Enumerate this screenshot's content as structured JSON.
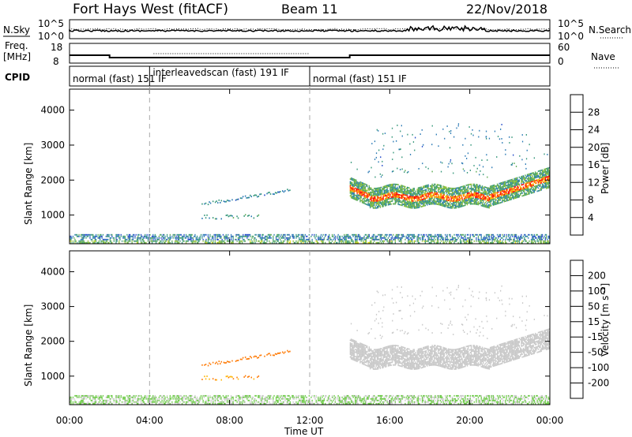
{
  "header": {
    "station": "Fort Hays West (fitACF)",
    "beam": "Beam 11",
    "date": "22/Nov/2018"
  },
  "noise_panel": {
    "left_label": "N.Sky",
    "left_ticks": [
      "10^5",
      "10^0"
    ],
    "right_ticks": [
      "10^5",
      "10^0"
    ],
    "right_label": "N.Search"
  },
  "freq_panel": {
    "left_label_1": "Freq.",
    "left_label_2": "[MHz]",
    "left_ticks": [
      "18",
      "8"
    ],
    "right_ticks": [
      "60",
      "0"
    ],
    "right_label": "Nave"
  },
  "cpid_panel": {
    "label": "CPID",
    "segments": [
      {
        "start_h": 0,
        "end_h": 4,
        "text": "normal (fast)  151 IF"
      },
      {
        "start_h": 4,
        "end_h": 12,
        "text": "interleavedscan (fast) 191 IF"
      },
      {
        "start_h": 12,
        "end_h": 24,
        "text": "normal (fast) 151 IF"
      }
    ]
  },
  "x_axis": {
    "title": "Time UT",
    "tick_labels": [
      "00:00",
      "04:00",
      "08:00",
      "12:00",
      "16:00",
      "20:00",
      "00:00"
    ],
    "tick_hours": [
      0,
      4,
      8,
      12,
      16,
      20,
      24
    ],
    "range_h": [
      0,
      24
    ],
    "cpid_change_lines_h": [
      4,
      12
    ]
  },
  "power_panel": {
    "ylabel": "Slant Range [km]",
    "yticks": [
      "1000",
      "2000",
      "3000",
      "4000"
    ],
    "colorbar": {
      "title": "Power [dB]",
      "labels": [
        "4",
        "8",
        "12",
        "16",
        "20",
        "24",
        "28"
      ],
      "colors": [
        "#0000ff",
        "#1e46c8",
        "#2878b4",
        "#329678",
        "#5aaa50",
        "#8cbe32",
        "#e6dc00",
        "#ffa000",
        "#ff6400",
        "#ff0000"
      ]
    }
  },
  "velocity_panel": {
    "ylabel": "Slant Range [km]",
    "yticks": [
      "1000",
      "2000",
      "3000",
      "4000"
    ],
    "colorbar": {
      "title": "Velocity [m s⁻¹]",
      "labels": [
        "200",
        "100",
        "50",
        "15",
        "-15",
        "-50",
        "-100",
        "-200"
      ],
      "colors": [
        "#1428dc",
        "#2878b4",
        "#3ca050",
        "#64c83c",
        "#c8c8c8",
        "#ffb400",
        "#ff7800",
        "#ff3c00",
        "#e60000"
      ]
    }
  },
  "chart_data": {
    "type": "heatmap",
    "title": "Fort Hays West (fitACF)  Beam 11  22/Nov/2018",
    "xlabel": "Time UT",
    "ylabel": "Slant Range [km]",
    "xlim_h": [
      0,
      24
    ],
    "ylim_km": [
      180,
      4600
    ],
    "features": [
      {
        "name": "ground scatter band",
        "t_start_h": 0,
        "t_end_h": 24,
        "range_km": [
          180,
          420
        ],
        "power_db": 10,
        "velocity_ms": 30
      },
      {
        "name": "F-region echo upper",
        "t_start_h": 6.6,
        "t_end_h": 11.0,
        "range_km_start": 1250,
        "range_km_end": 1650,
        "power_db": 8,
        "velocity_ms": -60
      },
      {
        "name": "F-region echo lower",
        "t_start_h": 6.6,
        "t_end_h": 9.5,
        "range_km": [
          850,
          1000
        ],
        "power_db": 10,
        "velocity_ms": -50
      },
      {
        "name": "main scatter band",
        "t_start_h": 14.0,
        "t_end_h": 24.0,
        "range_km_start": 1700,
        "range_km_end": 2050,
        "min_range_km": 1350,
        "width_km": 600,
        "power_db_peak": 30,
        "velocity_ms": -5
      },
      {
        "name": "upper sporadic echoes",
        "t_start_h": 15.0,
        "t_end_h": 23.0,
        "range_km": [
          2300,
          3600
        ],
        "power_db": 8,
        "velocity_ms": 10
      }
    ]
  }
}
